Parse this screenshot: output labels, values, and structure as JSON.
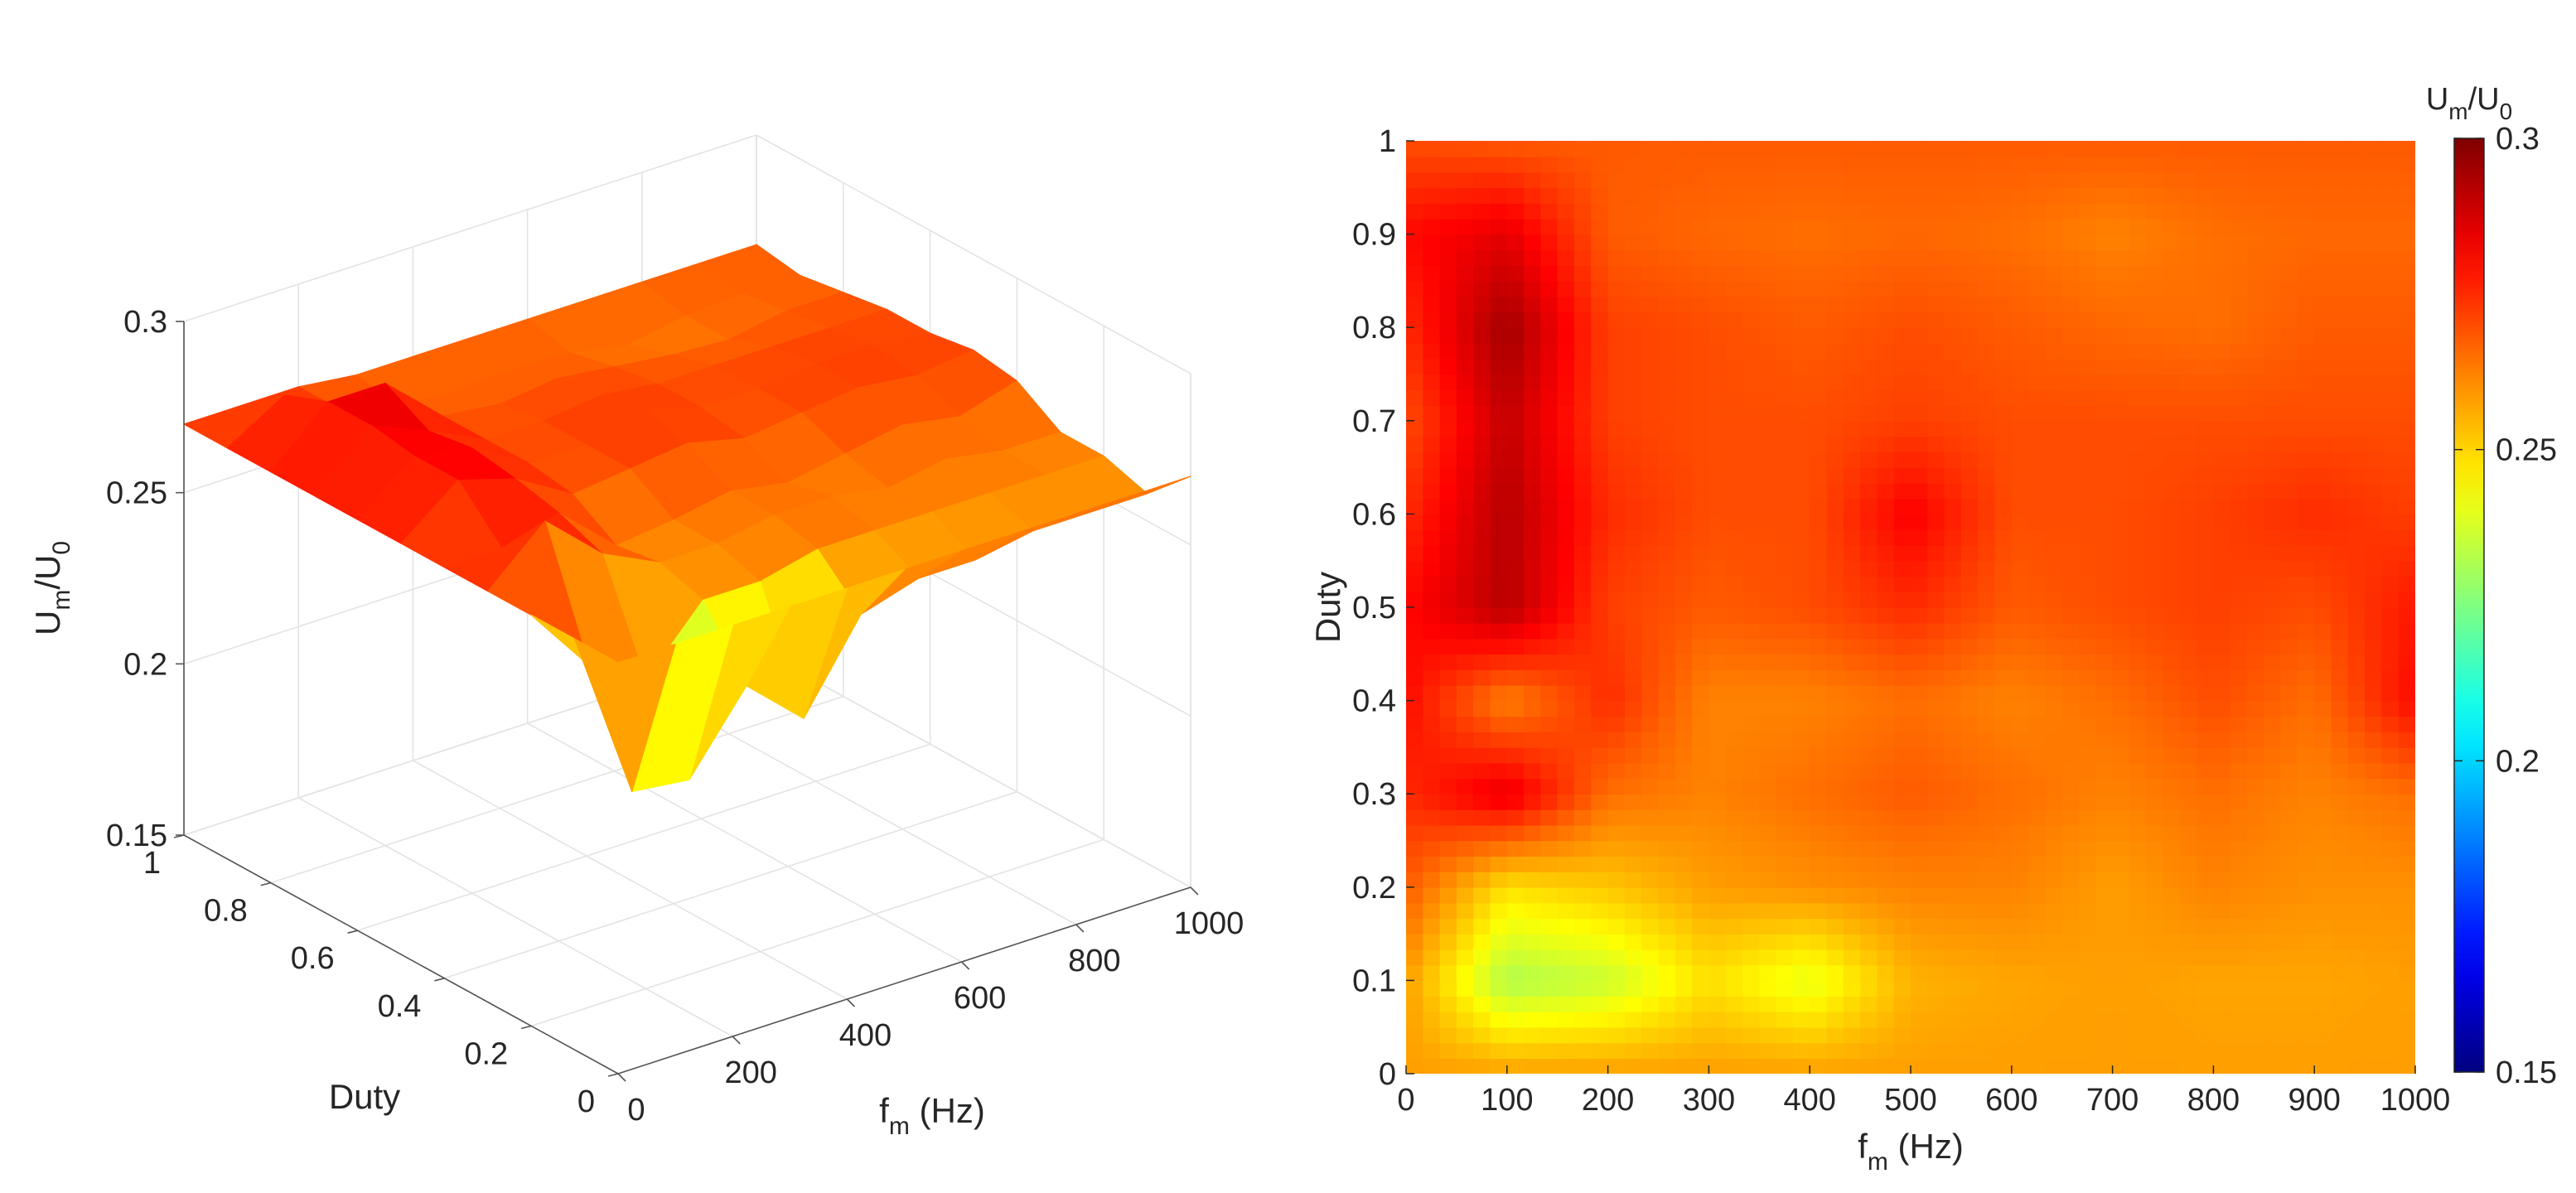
{
  "chart_data": [
    {
      "type": "surface",
      "xlabel": {
        "main": "f",
        "sub": "m",
        "rest": " (Hz)"
      },
      "ylabel": "Duty",
      "zlabel": {
        "main": "U",
        "sub1": "m",
        "mid": "/U",
        "sub2": "0"
      },
      "x_ticks": [
        "0",
        "200",
        "400",
        "600",
        "800",
        "1000"
      ],
      "y_ticks": [
        "0",
        "0.2",
        "0.4",
        "0.6",
        "0.8",
        "1"
      ],
      "z_ticks": [
        "0.15",
        "0.2",
        "0.25",
        "0.3"
      ],
      "xlim": [
        0,
        1000
      ],
      "ylim": [
        0,
        1
      ],
      "zlim": [
        0.15,
        0.3
      ],
      "grid": true,
      "colormap": "jet",
      "clim": [
        0.15,
        0.3
      ],
      "x": [
        0,
        100,
        200,
        300,
        400,
        500,
        600,
        700,
        800,
        900,
        1000
      ],
      "y": [
        0,
        0.1,
        0.2,
        0.3,
        0.4,
        0.5,
        0.6,
        0.7,
        0.8,
        0.9,
        1
      ],
      "z": [
        [
          0.27,
          0.27,
          0.27,
          0.27,
          0.27,
          0.27,
          0.27,
          0.27,
          0.27,
          0.27,
          0.27
        ],
        [
          0.27,
          0.22,
          0.218,
          0.24,
          0.225,
          0.25,
          0.255,
          0.255,
          0.258,
          0.258,
          0.258
        ],
        [
          0.27,
          0.25,
          0.24,
          0.258,
          0.258,
          0.262,
          0.262,
          0.262,
          0.262,
          0.262,
          0.262
        ],
        [
          0.27,
          0.285,
          0.27,
          0.262,
          0.262,
          0.265,
          0.265,
          0.262,
          0.265,
          0.262,
          0.262
        ],
        [
          0.27,
          0.27,
          0.275,
          0.26,
          0.262,
          0.265,
          0.262,
          0.265,
          0.268,
          0.265,
          0.27
        ],
        [
          0.27,
          0.283,
          0.278,
          0.268,
          0.27,
          0.272,
          0.268,
          0.27,
          0.272,
          0.27,
          0.272
        ],
        [
          0.27,
          0.283,
          0.28,
          0.27,
          0.27,
          0.275,
          0.27,
          0.27,
          0.272,
          0.272,
          0.27
        ],
        [
          0.27,
          0.285,
          0.278,
          0.27,
          0.27,
          0.272,
          0.27,
          0.27,
          0.27,
          0.27,
          0.27
        ],
        [
          0.27,
          0.285,
          0.285,
          0.27,
          0.268,
          0.27,
          0.268,
          0.266,
          0.265,
          0.268,
          0.268
        ],
        [
          0.27,
          0.28,
          0.27,
          0.266,
          0.265,
          0.266,
          0.265,
          0.262,
          0.265,
          0.266,
          0.266
        ],
        [
          0.27,
          0.27,
          0.27,
          0.268,
          0.268,
          0.268,
          0.268,
          0.268,
          0.268,
          0.268,
          0.268
        ]
      ]
    },
    {
      "type": "heatmap",
      "xlabel": {
        "main": "f",
        "sub": "m",
        "rest": " (Hz)"
      },
      "ylabel": "Duty",
      "x_ticks": [
        "0",
        "100",
        "200",
        "300",
        "400",
        "500",
        "600",
        "700",
        "800",
        "900",
        "1000"
      ],
      "y_ticks": [
        "0",
        "0.1",
        "0.2",
        "0.3",
        "0.4",
        "0.5",
        "0.6",
        "0.7",
        "0.8",
        "0.9",
        "1"
      ],
      "xlim": [
        0,
        1000
      ],
      "ylim": [
        0,
        1
      ],
      "colormap": "jet",
      "clim": [
        0.15,
        0.3
      ],
      "colorbar": {
        "title": {
          "main": "U",
          "sub1": "m",
          "mid": "/U",
          "sub2": "0"
        },
        "ticks": [
          "0.15",
          "0.2",
          "0.25",
          "0.3"
        ]
      },
      "x": [
        0,
        100,
        200,
        300,
        400,
        500,
        600,
        700,
        800,
        900,
        1000
      ],
      "y": [
        0,
        0.1,
        0.2,
        0.3,
        0.4,
        0.5,
        0.6,
        0.7,
        0.8,
        0.9,
        1
      ],
      "z": [
        [
          0.258,
          0.258,
          0.258,
          0.258,
          0.258,
          0.258,
          0.258,
          0.258,
          0.258,
          0.258,
          0.258
        ],
        [
          0.258,
          0.232,
          0.236,
          0.248,
          0.24,
          0.255,
          0.257,
          0.258,
          0.257,
          0.257,
          0.258
        ],
        [
          0.268,
          0.248,
          0.252,
          0.258,
          0.26,
          0.262,
          0.262,
          0.258,
          0.262,
          0.26,
          0.26
        ],
        [
          0.275,
          0.285,
          0.265,
          0.262,
          0.265,
          0.268,
          0.265,
          0.262,
          0.265,
          0.262,
          0.265
        ],
        [
          0.28,
          0.262,
          0.275,
          0.262,
          0.262,
          0.265,
          0.262,
          0.265,
          0.27,
          0.265,
          0.28
        ],
        [
          0.28,
          0.292,
          0.272,
          0.268,
          0.27,
          0.275,
          0.268,
          0.27,
          0.272,
          0.27,
          0.278
        ],
        [
          0.275,
          0.292,
          0.275,
          0.27,
          0.27,
          0.282,
          0.27,
          0.27,
          0.272,
          0.275,
          0.272
        ],
        [
          0.27,
          0.29,
          0.272,
          0.27,
          0.27,
          0.272,
          0.27,
          0.27,
          0.27,
          0.27,
          0.27
        ],
        [
          0.275,
          0.295,
          0.272,
          0.27,
          0.268,
          0.27,
          0.268,
          0.266,
          0.265,
          0.268,
          0.268
        ],
        [
          0.28,
          0.285,
          0.268,
          0.266,
          0.265,
          0.266,
          0.265,
          0.262,
          0.265,
          0.266,
          0.266
        ],
        [
          0.27,
          0.268,
          0.268,
          0.268,
          0.268,
          0.268,
          0.268,
          0.268,
          0.268,
          0.268,
          0.268
        ]
      ]
    }
  ]
}
